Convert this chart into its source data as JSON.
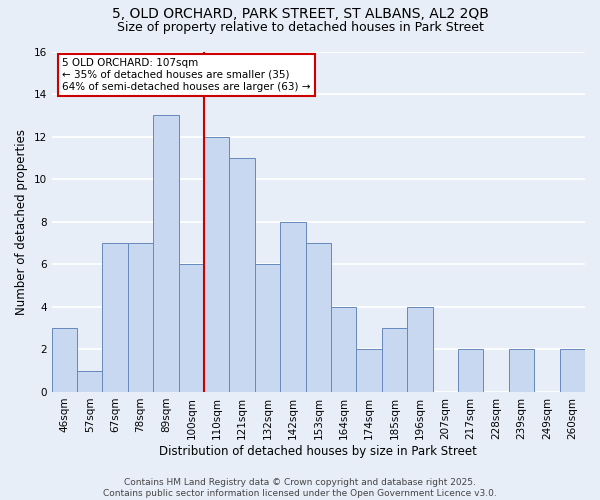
{
  "title1": "5, OLD ORCHARD, PARK STREET, ST ALBANS, AL2 2QB",
  "title2": "Size of property relative to detached houses in Park Street",
  "xlabel": "Distribution of detached houses by size in Park Street",
  "ylabel": "Number of detached properties",
  "bar_labels": [
    "46sqm",
    "57sqm",
    "67sqm",
    "78sqm",
    "89sqm",
    "100sqm",
    "110sqm",
    "121sqm",
    "132sqm",
    "142sqm",
    "153sqm",
    "164sqm",
    "174sqm",
    "185sqm",
    "196sqm",
    "207sqm",
    "217sqm",
    "228sqm",
    "239sqm",
    "249sqm",
    "260sqm"
  ],
  "bar_values": [
    3,
    1,
    7,
    7,
    13,
    6,
    12,
    11,
    6,
    8,
    7,
    4,
    2,
    3,
    4,
    0,
    2,
    0,
    2,
    0,
    2
  ],
  "bar_color": "#c8d8f0",
  "bar_edge_color": "#6688bb",
  "vline_x_index": 5.5,
  "vline_color": "#cc0000",
  "annotation_text": "5 OLD ORCHARD: 107sqm\n← 35% of detached houses are smaller (35)\n64% of semi-detached houses are larger (63) →",
  "annotation_box_color": "#ffffff",
  "annotation_box_edge_color": "#cc0000",
  "ylim": [
    0,
    16
  ],
  "yticks": [
    0,
    2,
    4,
    6,
    8,
    10,
    12,
    14,
    16
  ],
  "background_color": "#e8eef8",
  "grid_color": "#ffffff",
  "footer_text": "Contains HM Land Registry data © Crown copyright and database right 2025.\nContains public sector information licensed under the Open Government Licence v3.0.",
  "title_fontsize": 10,
  "subtitle_fontsize": 9,
  "axis_label_fontsize": 8.5,
  "tick_fontsize": 7.5,
  "annotation_fontsize": 7.5,
  "footer_fontsize": 6.5
}
